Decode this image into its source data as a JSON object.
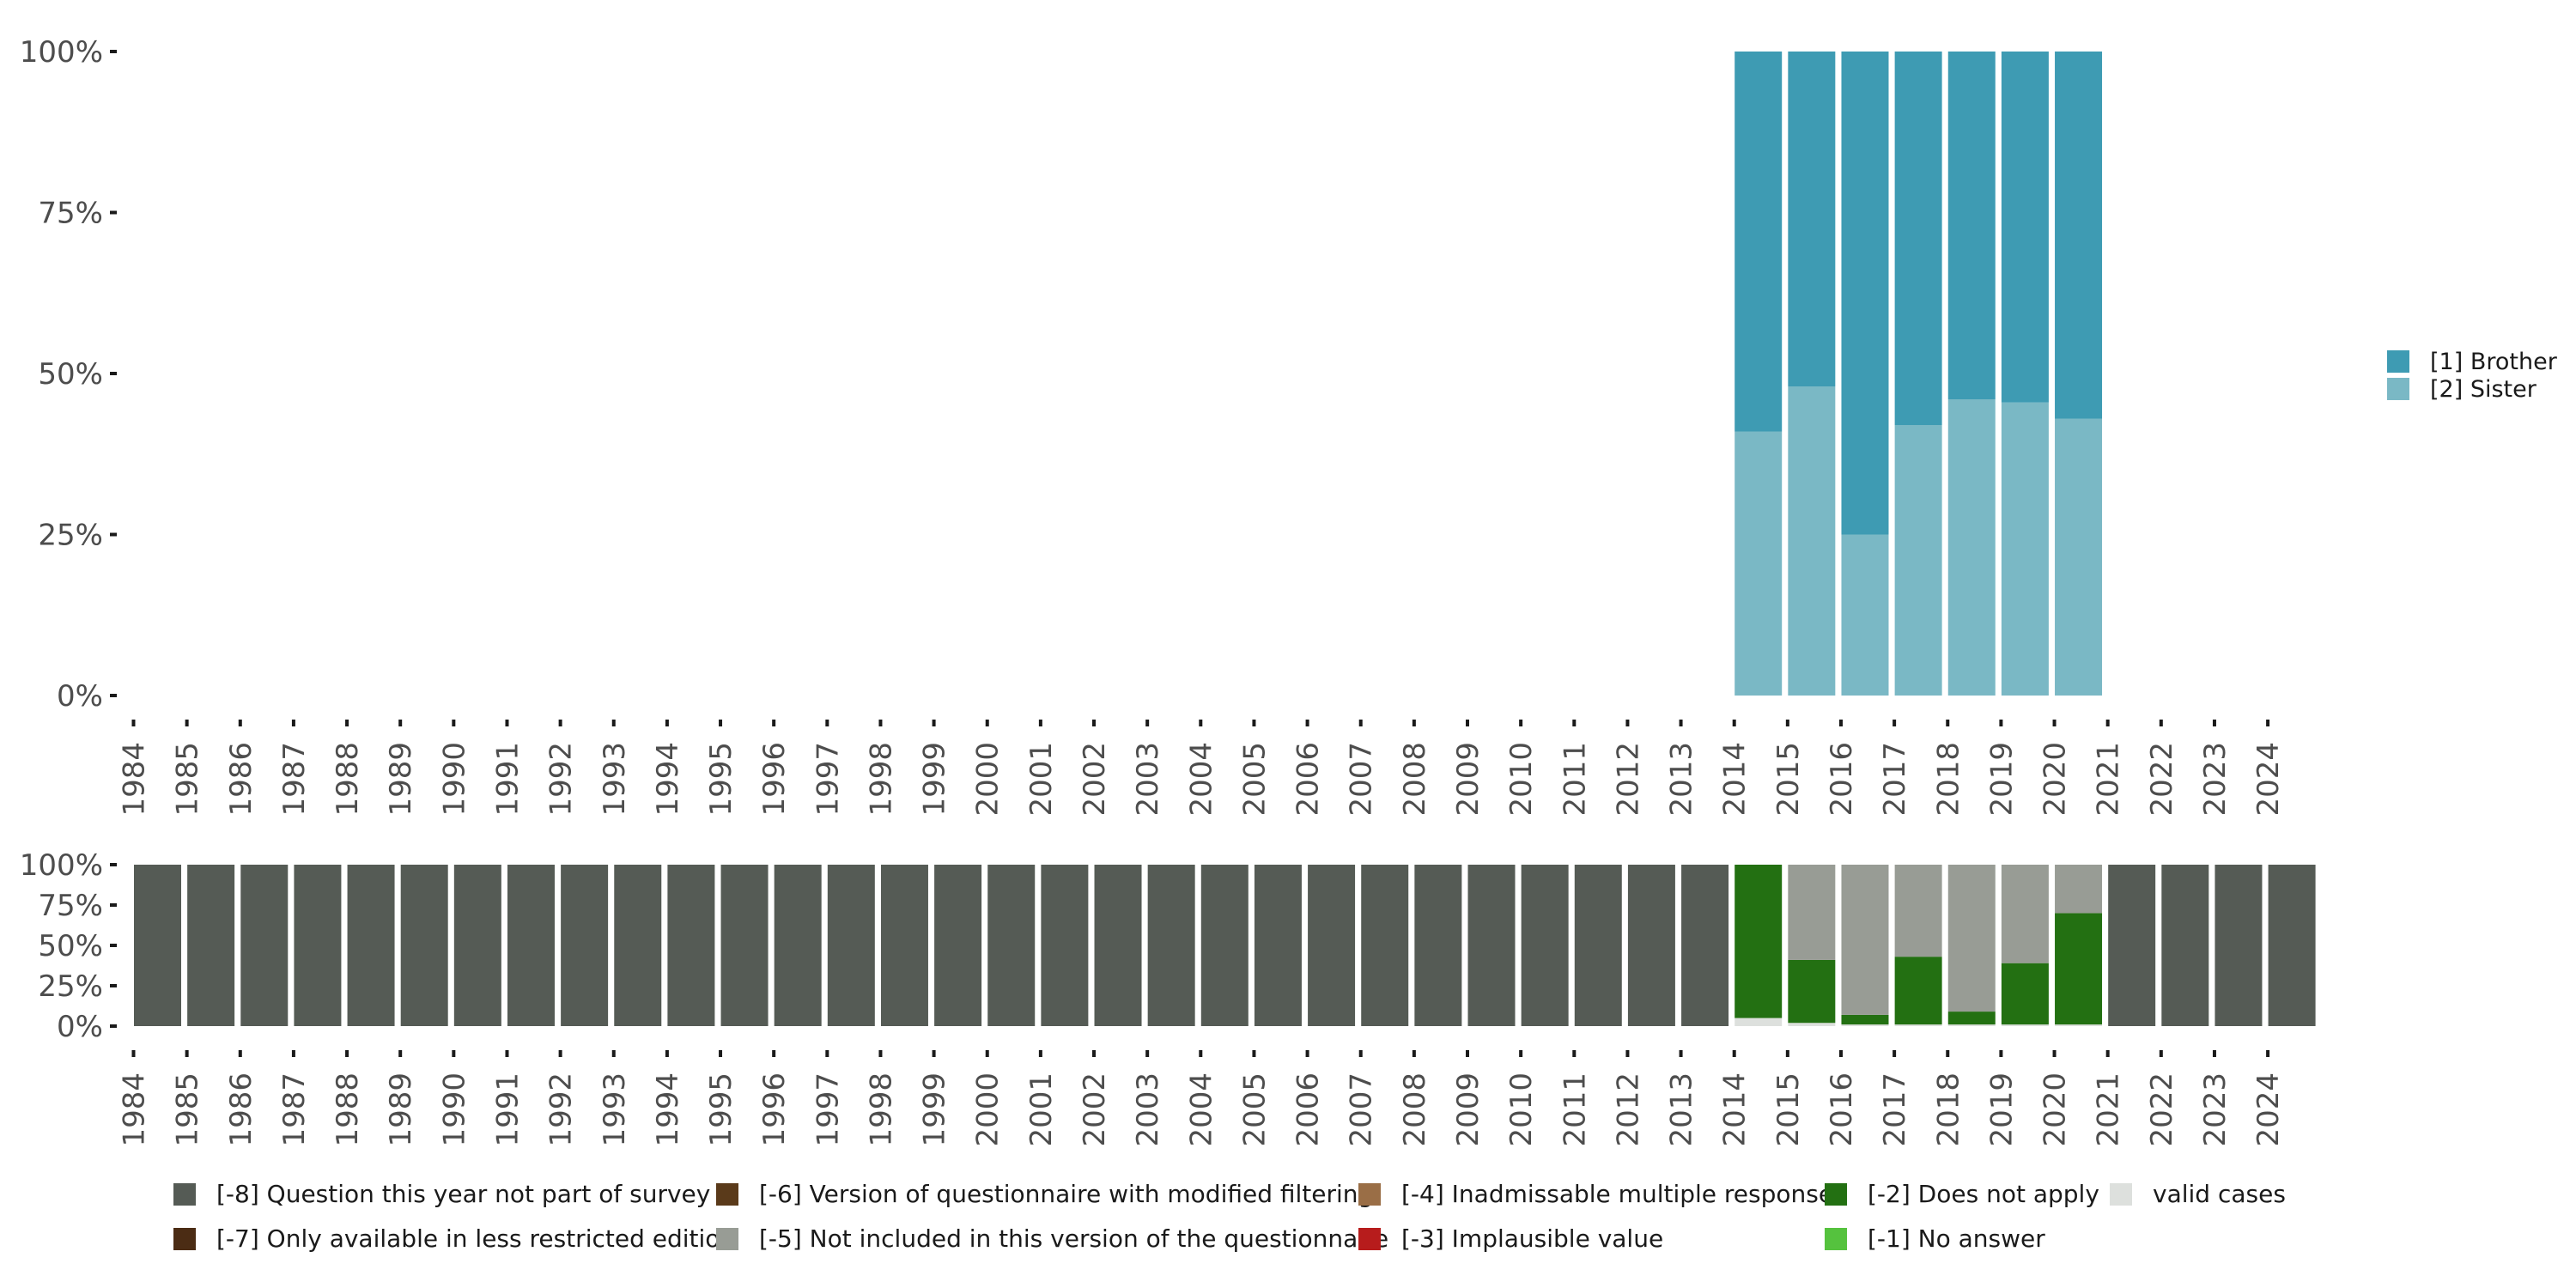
{
  "chart_data": [
    {
      "type": "bar",
      "stacked": true,
      "title": "",
      "xlabel": "",
      "ylabel": "",
      "ylim": [
        0,
        100
      ],
      "yticks": [
        "0%",
        "25%",
        "50%",
        "75%",
        "100%"
      ],
      "x": [
        "1984",
        "1985",
        "1986",
        "1987",
        "1988",
        "1989",
        "1990",
        "1991",
        "1992",
        "1993",
        "1994",
        "1995",
        "1996",
        "1997",
        "1998",
        "1999",
        "2000",
        "2001",
        "2002",
        "2003",
        "2004",
        "2005",
        "2006",
        "2007",
        "2008",
        "2009",
        "2010",
        "2011",
        "2012",
        "2013",
        "2014",
        "2015",
        "2016",
        "2017",
        "2018",
        "2019",
        "2020",
        "2021",
        "2022",
        "2023",
        "2024"
      ],
      "legend_position": "right",
      "series": [
        {
          "name": "[2] Sister",
          "color": "#7ab8c5",
          "values": {
            "2014": 41,
            "2015": 48,
            "2016": 25,
            "2017": 42,
            "2018": 46,
            "2019": 45.5,
            "2020": 43
          }
        },
        {
          "name": "[1] Brother",
          "color": "#3e9bb3",
          "values": {
            "2014": 59,
            "2015": 52,
            "2016": 75,
            "2017": 58,
            "2018": 54,
            "2019": 54.5,
            "2020": 57
          }
        }
      ]
    },
    {
      "type": "bar",
      "stacked": true,
      "title": "",
      "xlabel": "",
      "ylabel": "",
      "ylim": [
        0,
        100
      ],
      "yticks": [
        "0%",
        "25%",
        "50%",
        "75%",
        "100%"
      ],
      "x": [
        "1984",
        "1985",
        "1986",
        "1987",
        "1988",
        "1989",
        "1990",
        "1991",
        "1992",
        "1993",
        "1994",
        "1995",
        "1996",
        "1997",
        "1998",
        "1999",
        "2000",
        "2001",
        "2002",
        "2003",
        "2004",
        "2005",
        "2006",
        "2007",
        "2008",
        "2009",
        "2010",
        "2011",
        "2012",
        "2013",
        "2014",
        "2015",
        "2016",
        "2017",
        "2018",
        "2019",
        "2020",
        "2021",
        "2022",
        "2023",
        "2024"
      ],
      "legend_position": "bottom",
      "series": [
        {
          "name": "valid cases",
          "color": "#dde0dd",
          "values": {
            "2014": 5,
            "2015": 2,
            "2016": 1,
            "2017": 1,
            "2018": 1,
            "2019": 1,
            "2020": 1
          }
        },
        {
          "name": "[-2] Does not apply",
          "color": "#237012",
          "values": {
            "2014": 95,
            "2015": 39,
            "2016": 6,
            "2017": 42,
            "2018": 8,
            "2019": 38,
            "2020": 69
          }
        },
        {
          "name": "[-5] Not included in this version of the questionnaire",
          "color": "#989c95",
          "values": {
            "2015": 59,
            "2016": 93,
            "2017": 57,
            "2018": 91,
            "2019": 61,
            "2020": 30
          }
        },
        {
          "name": "[-8] Question this year not part of survey",
          "color": "#555b55",
          "values": {
            "1984": 100,
            "1985": 100,
            "1986": 100,
            "1987": 100,
            "1988": 100,
            "1989": 100,
            "1990": 100,
            "1991": 100,
            "1992": 100,
            "1993": 100,
            "1994": 100,
            "1995": 100,
            "1996": 100,
            "1997": 100,
            "1998": 100,
            "1999": 100,
            "2000": 100,
            "2001": 100,
            "2002": 100,
            "2003": 100,
            "2004": 100,
            "2005": 100,
            "2006": 100,
            "2007": 100,
            "2008": 100,
            "2009": 100,
            "2010": 100,
            "2011": 100,
            "2012": 100,
            "2013": 100,
            "2021": 100,
            "2022": 100,
            "2023": 100,
            "2024": 100
          }
        }
      ],
      "legend": [
        {
          "label": "[-8] Question this year not part of survey",
          "color": "#555b55"
        },
        {
          "label": "[-7] Only available in less restricted edition",
          "color": "#4b2c14"
        },
        {
          "label": "[-6] Version of questionnaire with modified filtering",
          "color": "#5a3a1a"
        },
        {
          "label": "[-5] Not included in this version of the questionnaire",
          "color": "#989c95"
        },
        {
          "label": "[-4] Inadmissable multiple response",
          "color": "#9a6e46"
        },
        {
          "label": "[-3] Implausible value",
          "color": "#b71c1c"
        },
        {
          "label": "[-2] Does not apply",
          "color": "#237012"
        },
        {
          "label": "[-1] No answer",
          "color": "#55c23e"
        },
        {
          "label": "valid cases",
          "color": "#dde0dd"
        }
      ]
    }
  ]
}
